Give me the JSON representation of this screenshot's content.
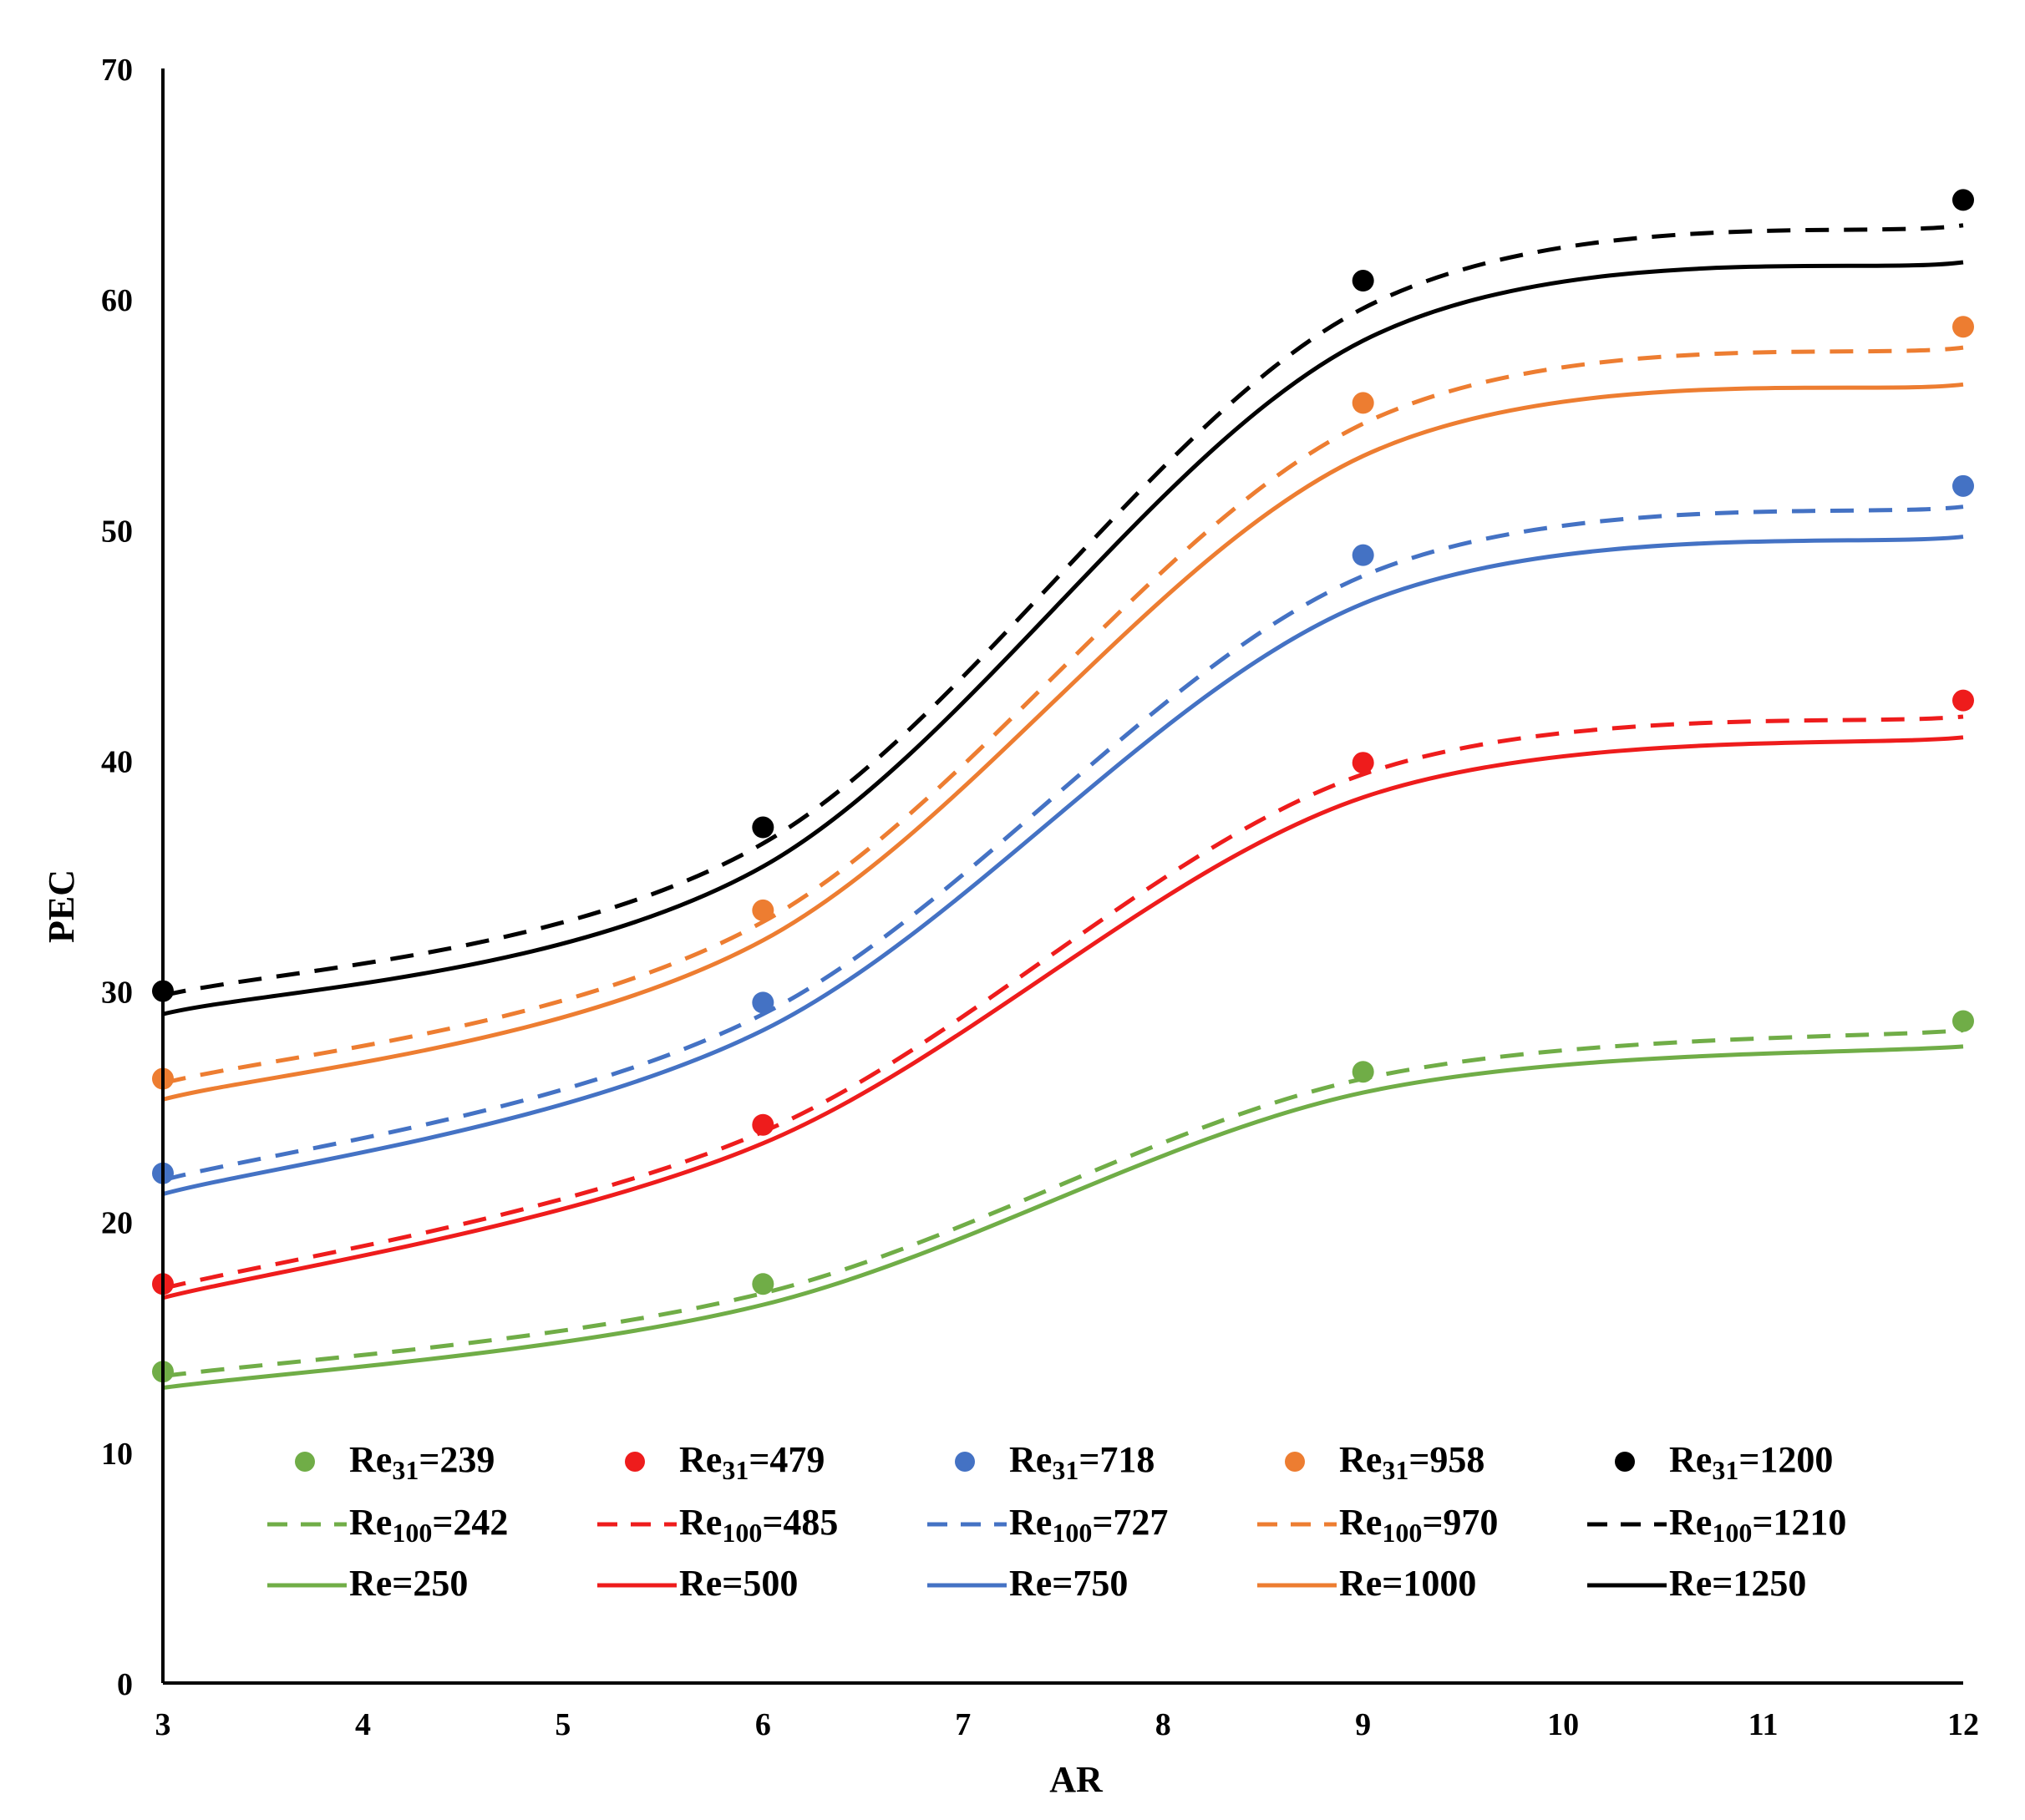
{
  "chart_data": {
    "type": "line",
    "title": "",
    "xlabel": "AR",
    "ylabel": "PEC",
    "xlim": [
      3,
      12
    ],
    "ylim": [
      0,
      70
    ],
    "xticks": [
      3,
      4,
      5,
      6,
      7,
      8,
      9,
      10,
      11,
      12
    ],
    "yticks": [
      0,
      10,
      20,
      30,
      40,
      50,
      60,
      70
    ],
    "grid": false,
    "legend_position": "bottom, inside plot area",
    "x": [
      3,
      6,
      9,
      12
    ],
    "series": [
      {
        "name": "Re31=239",
        "label_base": "Re",
        "label_sub": "31",
        "label_eq": "=239",
        "style": "markers",
        "color": "#70ad47",
        "values": [
          13.5,
          17.3,
          26.5,
          28.7
        ]
      },
      {
        "name": "Re31=479",
        "label_base": "Re",
        "label_sub": "31",
        "label_eq": "=479",
        "style": "markers",
        "color": "#ee1c1c",
        "values": [
          17.3,
          24.2,
          39.9,
          42.6
        ]
      },
      {
        "name": "Re31=718",
        "label_base": "Re",
        "label_sub": "31",
        "label_eq": "=718",
        "style": "markers",
        "color": "#4472c4",
        "values": [
          22.1,
          29.5,
          48.9,
          51.9
        ]
      },
      {
        "name": "Re31=958",
        "label_base": "Re",
        "label_sub": "31",
        "label_eq": "=958",
        "style": "markers",
        "color": "#ed7d31",
        "values": [
          26.2,
          33.5,
          55.5,
          58.8
        ]
      },
      {
        "name": "Re31=1200",
        "label_base": "Re",
        "label_sub": "31",
        "label_eq": "=1200",
        "style": "markers",
        "color": "#000000",
        "values": [
          30.0,
          37.1,
          60.8,
          64.3
        ]
      },
      {
        "name": "Re100=242",
        "label_base": "Re",
        "label_sub": "100",
        "label_eq": "=242",
        "style": "dashed",
        "color": "#70ad47",
        "values": [
          13.3,
          16.9,
          26.2,
          28.3
        ]
      },
      {
        "name": "Re100=485",
        "label_base": "Re",
        "label_sub": "100",
        "label_eq": "=485",
        "style": "dashed",
        "color": "#ee1c1c",
        "values": [
          17.1,
          23.9,
          39.4,
          41.9
        ]
      },
      {
        "name": "Re100=727",
        "label_base": "Re",
        "label_sub": "100",
        "label_eq": "=727",
        "style": "dashed",
        "color": "#4472c4",
        "values": [
          21.8,
          29.0,
          48.0,
          51.0
        ]
      },
      {
        "name": "Re100=970",
        "label_base": "Re",
        "label_sub": "100",
        "label_eq": "=970",
        "style": "dashed",
        "color": "#ed7d31",
        "values": [
          26.0,
          33.0,
          54.6,
          57.9
        ]
      },
      {
        "name": "Re100=1210",
        "label_base": "Re",
        "label_sub": "100",
        "label_eq": "=1210",
        "style": "dashed",
        "color": "#000000",
        "values": [
          29.8,
          36.4,
          59.6,
          63.2
        ]
      },
      {
        "name": "Re=250",
        "label_base": "Re=250",
        "label_sub": "",
        "label_eq": "",
        "style": "solid",
        "color": "#70ad47",
        "values": [
          12.8,
          16.4,
          25.6,
          27.6
        ]
      },
      {
        "name": "Re=500",
        "label_base": "Re=500",
        "label_sub": "",
        "label_eq": "",
        "style": "solid",
        "color": "#ee1c1c",
        "values": [
          16.7,
          23.4,
          38.4,
          41.0
        ]
      },
      {
        "name": "Re=750",
        "label_base": "Re=750",
        "label_sub": "",
        "label_eq": "",
        "style": "solid",
        "color": "#4472c4",
        "values": [
          21.2,
          28.3,
          46.8,
          49.7
        ]
      },
      {
        "name": "Re=1000",
        "label_base": "Re=1000",
        "label_sub": "",
        "label_eq": "",
        "style": "solid",
        "color": "#ed7d31",
        "values": [
          25.3,
          32.2,
          53.2,
          56.3
        ]
      },
      {
        "name": "Re=1250",
        "label_base": "Re=1250",
        "label_sub": "",
        "label_eq": "",
        "style": "solid",
        "color": "#000000",
        "values": [
          29.0,
          35.4,
          58.2,
          61.6
        ]
      }
    ]
  }
}
